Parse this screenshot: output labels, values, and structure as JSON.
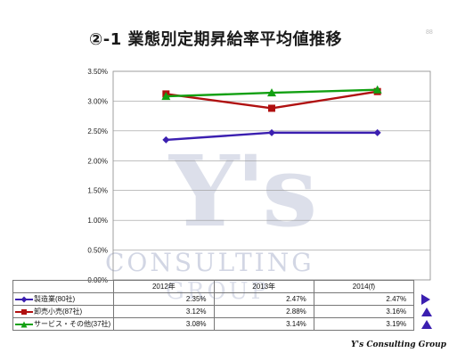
{
  "header": {
    "title": "②-1 業態別定期昇給率平均値推移",
    "page_number": "88"
  },
  "watermark": {
    "logo_text": "Y's",
    "line1": "CONSULTING",
    "line2": "GROUP"
  },
  "footer": {
    "brand": "Y's Consulting Group"
  },
  "chart_data": {
    "type": "line",
    "categories": [
      "2012年",
      "2013年",
      "2014(f)"
    ],
    "ylim": [
      0,
      3.5
    ],
    "yticks": [
      "0.00%",
      "0.50%",
      "1.00%",
      "1.50%",
      "2.00%",
      "2.50%",
      "3.00%",
      "3.50%"
    ],
    "grid": true,
    "legend": "table-below",
    "series": [
      {
        "name": "製造業(80社)",
        "values": [
          2.35,
          2.47,
          2.47
        ],
        "labels": [
          "2.35%",
          "2.47%",
          "2.47%"
        ],
        "color": "#3b1fb0",
        "marker": "diamond",
        "trend": "right-arrow"
      },
      {
        "name": "卸売小売(87社)",
        "values": [
          3.12,
          2.88,
          3.16
        ],
        "labels": [
          "3.12%",
          "2.88%",
          "3.16%"
        ],
        "color": "#b01010",
        "marker": "square",
        "trend": "up-arrow"
      },
      {
        "name": "サービス・その他(37社)",
        "values": [
          3.08,
          3.14,
          3.19
        ],
        "labels": [
          "3.08%",
          "3.14%",
          "3.19%"
        ],
        "color": "#12a012",
        "marker": "triangle",
        "trend": "up-arrow"
      }
    ]
  }
}
